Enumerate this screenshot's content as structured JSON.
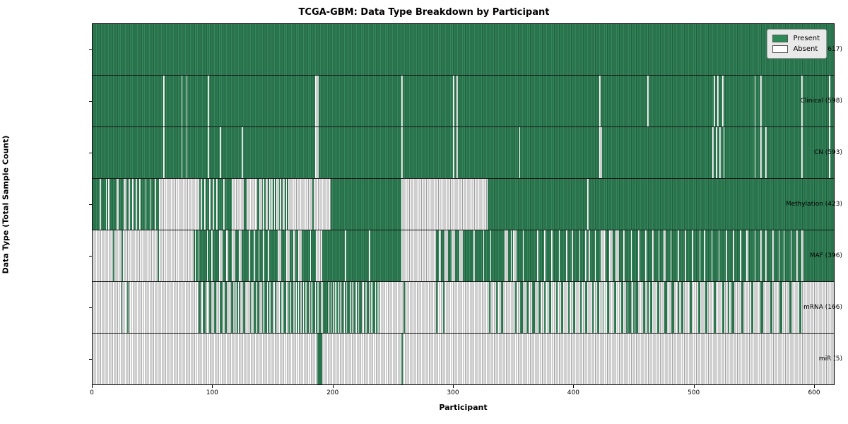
{
  "title": "TCGA-GBM: Data Type Breakdown by Participant",
  "xlabel": "Participant",
  "ylabel": "Data Type (Total Sample Count)",
  "legend": {
    "present_label": "Present",
    "absent_label": "Absent",
    "present_color": "#2e8b57",
    "absent_color": "#ffffff"
  },
  "colors": {
    "present_fill": "#2e8b57",
    "present_edge": "#1f5f3c",
    "absent_fill": "#ffffff",
    "absent_edge": "#9f9f9f",
    "grid_line": "#141414",
    "legend_bg": "#e9e9e9"
  },
  "chart_data": {
    "type": "heatmap",
    "title": "TCGA-GBM: Data Type Breakdown by Participant",
    "xlabel": "Participant",
    "ylabel": "Data Type (Total Sample Count)",
    "x_range": [
      0,
      617
    ],
    "x_ticks": [
      0,
      100,
      200,
      300,
      400,
      500,
      600
    ],
    "total_participants": 617,
    "states": [
      "Present",
      "Absent"
    ],
    "rows": [
      {
        "label": "BCR (617)",
        "data_type": "BCR",
        "present_count": 617,
        "base": "present",
        "overlay_state": "absent",
        "overlay_ranges": []
      },
      {
        "label": "Clinical (598)",
        "data_type": "Clinical",
        "present_count": 598,
        "base": "present",
        "overlay_state": "absent",
        "overlay_ranges": [
          [
            59,
            60
          ],
          [
            74,
            75
          ],
          [
            78,
            79
          ],
          [
            96,
            97
          ],
          [
            185,
            188
          ],
          [
            257,
            258
          ],
          [
            300,
            301
          ],
          [
            303,
            304
          ],
          [
            422,
            423
          ],
          [
            462,
            463
          ],
          [
            517,
            518
          ],
          [
            520,
            521
          ],
          [
            524,
            525
          ],
          [
            551,
            552
          ],
          [
            556,
            557
          ],
          [
            590,
            591
          ],
          [
            613,
            614
          ]
        ]
      },
      {
        "label": "CN (593)",
        "data_type": "CN",
        "present_count": 593,
        "base": "present",
        "overlay_state": "absent",
        "overlay_ranges": [
          [
            59,
            60
          ],
          [
            74,
            75
          ],
          [
            78,
            79
          ],
          [
            96,
            97
          ],
          [
            106,
            107
          ],
          [
            124,
            125
          ],
          [
            185,
            188
          ],
          [
            257,
            258
          ],
          [
            300,
            301
          ],
          [
            303,
            304
          ],
          [
            355,
            356
          ],
          [
            422,
            424
          ],
          [
            516,
            517
          ],
          [
            519,
            520
          ],
          [
            522,
            523
          ],
          [
            525,
            526
          ],
          [
            551,
            552
          ],
          [
            556,
            557
          ],
          [
            560,
            561
          ],
          [
            590,
            591
          ],
          [
            613,
            614
          ]
        ]
      },
      {
        "label": "Methylation (423)",
        "data_type": "Methylation",
        "present_count": 423,
        "base": "present",
        "overlay_state": "absent",
        "overlay_ranges": [
          [
            6,
            7
          ],
          [
            11,
            12
          ],
          [
            13,
            14
          ],
          [
            20,
            22
          ],
          [
            26,
            28
          ],
          [
            30,
            31
          ],
          [
            33,
            34
          ],
          [
            36,
            37
          ],
          [
            39,
            40
          ],
          [
            44,
            45
          ],
          [
            48,
            49
          ],
          [
            52,
            53
          ],
          [
            55,
            89
          ],
          [
            90,
            91
          ],
          [
            93,
            94
          ],
          [
            97,
            98
          ],
          [
            100,
            101
          ],
          [
            103,
            104
          ],
          [
            109,
            110
          ],
          [
            116,
            126
          ],
          [
            128,
            137
          ],
          [
            139,
            141
          ],
          [
            142,
            143
          ],
          [
            144,
            146
          ],
          [
            147,
            148
          ],
          [
            149,
            150
          ],
          [
            151,
            152
          ],
          [
            153,
            155
          ],
          [
            156,
            157
          ],
          [
            158,
            160
          ],
          [
            161,
            162
          ],
          [
            163,
            183
          ],
          [
            184,
            198
          ],
          [
            257,
            329
          ],
          [
            412,
            413
          ]
        ]
      },
      {
        "label": "MAF (396)",
        "data_type": "MAF",
        "present_count": 396,
        "base": "present",
        "overlay_state": "absent",
        "overlay_ranges": [
          [
            0,
            17
          ],
          [
            18,
            24
          ],
          [
            25,
            54
          ],
          [
            55,
            84
          ],
          [
            85,
            86
          ],
          [
            88,
            89
          ],
          [
            95,
            96
          ],
          [
            99,
            100
          ],
          [
            105,
            108
          ],
          [
            111,
            113
          ],
          [
            116,
            119
          ],
          [
            122,
            124
          ],
          [
            130,
            131
          ],
          [
            134,
            135
          ],
          [
            138,
            139
          ],
          [
            142,
            143
          ],
          [
            146,
            147
          ],
          [
            154,
            157
          ],
          [
            161,
            164
          ],
          [
            167,
            169
          ],
          [
            171,
            174
          ],
          [
            181,
            182
          ],
          [
            186,
            191
          ],
          [
            210,
            211
          ],
          [
            230,
            231
          ],
          [
            257,
            286
          ],
          [
            288,
            290
          ],
          [
            293,
            296
          ],
          [
            299,
            302
          ],
          [
            305,
            308
          ],
          [
            317,
            318
          ],
          [
            325,
            326
          ],
          [
            331,
            332
          ],
          [
            343,
            346
          ],
          [
            348,
            349
          ],
          [
            350,
            353
          ],
          [
            358,
            359
          ],
          [
            370,
            371
          ],
          [
            376,
            377
          ],
          [
            382,
            383
          ],
          [
            388,
            389
          ],
          [
            394,
            395
          ],
          [
            399,
            400
          ],
          [
            405,
            406
          ],
          [
            410,
            411
          ],
          [
            413,
            414
          ],
          [
            418,
            419
          ],
          [
            423,
            427
          ],
          [
            430,
            433
          ],
          [
            435,
            438
          ],
          [
            442,
            443
          ],
          [
            448,
            449
          ],
          [
            454,
            455
          ],
          [
            460,
            461
          ],
          [
            466,
            467
          ],
          [
            471,
            472
          ],
          [
            475,
            477
          ],
          [
            481,
            482
          ],
          [
            487,
            488
          ],
          [
            493,
            494
          ],
          [
            499,
            500
          ],
          [
            505,
            506
          ],
          [
            509,
            510
          ],
          [
            515,
            516
          ],
          [
            521,
            522
          ],
          [
            527,
            528
          ],
          [
            533,
            534
          ],
          [
            539,
            540
          ],
          [
            544,
            546
          ],
          [
            551,
            552
          ],
          [
            556,
            557
          ],
          [
            560,
            561
          ],
          [
            566,
            567
          ],
          [
            571,
            572
          ],
          [
            575,
            576
          ],
          [
            581,
            582
          ],
          [
            586,
            587
          ],
          [
            590,
            592
          ]
        ]
      },
      {
        "label": "mRNA (166)",
        "data_type": "mRNA",
        "present_count": 166,
        "base": "absent",
        "overlay_state": "present",
        "overlay_ranges": [
          [
            24,
            25
          ],
          [
            29,
            30
          ],
          [
            88,
            90
          ],
          [
            92,
            94
          ],
          [
            97,
            99
          ],
          [
            101,
            103
          ],
          [
            106,
            108
          ],
          [
            110,
            112
          ],
          [
            115,
            117
          ],
          [
            118,
            119
          ],
          [
            120,
            121
          ],
          [
            122,
            123
          ],
          [
            125,
            127
          ],
          [
            131,
            132
          ],
          [
            134,
            136
          ],
          [
            137,
            139
          ],
          [
            141,
            142
          ],
          [
            143,
            145
          ],
          [
            146,
            147
          ],
          [
            148,
            150
          ],
          [
            152,
            153
          ],
          [
            156,
            157
          ],
          [
            159,
            161
          ],
          [
            163,
            164
          ],
          [
            165,
            167
          ],
          [
            168,
            169
          ],
          [
            170,
            171
          ],
          [
            172,
            173
          ],
          [
            174,
            175
          ],
          [
            176,
            177
          ],
          [
            178,
            180
          ],
          [
            181,
            182
          ],
          [
            183,
            185
          ],
          [
            186,
            187
          ],
          [
            188,
            190
          ],
          [
            192,
            196
          ],
          [
            197,
            198
          ],
          [
            199,
            200
          ],
          [
            201,
            202
          ],
          [
            203,
            204
          ],
          [
            205,
            206
          ],
          [
            207,
            209
          ],
          [
            210,
            211
          ],
          [
            212,
            214
          ],
          [
            215,
            216
          ],
          [
            217,
            219
          ],
          [
            220,
            221
          ],
          [
            222,
            224
          ],
          [
            226,
            227
          ],
          [
            228,
            230
          ],
          [
            231,
            232
          ],
          [
            233,
            235
          ],
          [
            236,
            237
          ],
          [
            238,
            239
          ],
          [
            259,
            260
          ],
          [
            286,
            287
          ],
          [
            292,
            293
          ],
          [
            330,
            331
          ],
          [
            336,
            337
          ],
          [
            340,
            342
          ],
          [
            352,
            353
          ],
          [
            356,
            358
          ],
          [
            361,
            363
          ],
          [
            366,
            368
          ],
          [
            371,
            373
          ],
          [
            376,
            377
          ],
          [
            380,
            382
          ],
          [
            386,
            387
          ],
          [
            390,
            392
          ],
          [
            396,
            397
          ],
          [
            400,
            402
          ],
          [
            406,
            407
          ],
          [
            410,
            412
          ],
          [
            416,
            417
          ],
          [
            420,
            422
          ],
          [
            425,
            426
          ],
          [
            428,
            430
          ],
          [
            434,
            436
          ],
          [
            440,
            442
          ],
          [
            444,
            445
          ],
          [
            446,
            448
          ],
          [
            450,
            451
          ],
          [
            452,
            454
          ],
          [
            458,
            460
          ],
          [
            462,
            463
          ],
          [
            464,
            466
          ],
          [
            470,
            472
          ],
          [
            476,
            478
          ],
          [
            482,
            484
          ],
          [
            487,
            488
          ],
          [
            490,
            492
          ],
          [
            497,
            499
          ],
          [
            504,
            506
          ],
          [
            510,
            512
          ],
          [
            517,
            519
          ],
          [
            524,
            526
          ],
          [
            529,
            530
          ],
          [
            532,
            534
          ],
          [
            540,
            542
          ],
          [
            548,
            550
          ],
          [
            556,
            558
          ],
          [
            564,
            566
          ],
          [
            572,
            574
          ],
          [
            580,
            582
          ],
          [
            588,
            590
          ]
        ]
      },
      {
        "label": "miR (5)",
        "data_type": "miR",
        "present_count": 5,
        "base": "absent",
        "overlay_state": "present",
        "overlay_ranges": [
          [
            187,
            191
          ],
          [
            257,
            258
          ]
        ]
      }
    ],
    "legend_entries": [
      {
        "label": "Present",
        "color": "#2e8b57"
      },
      {
        "label": "Absent",
        "color": "#ffffff"
      }
    ]
  }
}
